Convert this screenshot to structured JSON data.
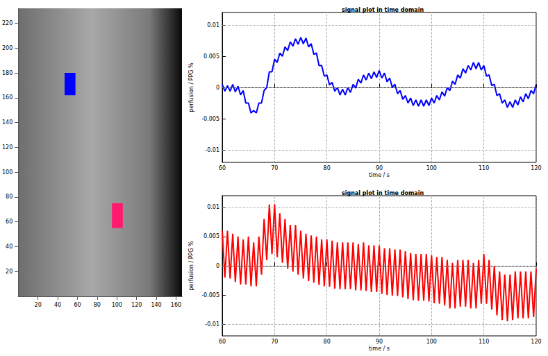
{
  "chart_data": [
    {
      "type": "image",
      "xlim": [
        0,
        166
      ],
      "ylim": [
        0,
        232
      ],
      "xticks": [
        20,
        40,
        60,
        80,
        100,
        120,
        140,
        160
      ],
      "yticks": [
        20,
        40,
        60,
        80,
        100,
        120,
        140,
        160,
        180,
        200,
        220
      ],
      "grid": false,
      "regions": [
        {
          "color": "#0000ff",
          "x": [
            47,
            58
          ],
          "y": [
            162,
            180
          ]
        },
        {
          "color": "#ff1a6e",
          "x": [
            95,
            106
          ],
          "y": [
            55,
            75
          ]
        }
      ]
    },
    {
      "type": "line",
      "title": "signal plot in time domain",
      "x_label": "time / s",
      "y_label": "perfusion / PPG %",
      "xlim": [
        60,
        120
      ],
      "xticks": [
        60,
        70,
        80,
        90,
        100,
        110,
        120
      ],
      "ylim": [
        -0.012,
        0.012
      ],
      "yticks": [
        -0.01,
        -0.005,
        0,
        0.005,
        0.01
      ],
      "grid": true,
      "x": [
        60,
        60.5,
        61,
        61.5,
        62,
        62.5,
        63,
        63.5,
        64,
        64.5,
        65,
        65.5,
        66,
        66.5,
        67,
        67.5,
        68,
        68.5,
        69,
        69.5,
        70,
        70.5,
        71,
        71.5,
        72,
        72.5,
        73,
        73.5,
        74,
        74.5,
        75,
        75.5,
        76,
        76.5,
        77,
        77.5,
        78,
        78.5,
        79,
        79.5,
        80,
        80.5,
        81,
        81.5,
        82,
        82.5,
        83,
        83.5,
        84,
        84.5,
        85,
        85.5,
        86,
        86.5,
        87,
        87.5,
        88,
        88.5,
        89,
        89.5,
        90,
        90.5,
        91,
        91.5,
        92,
        92.5,
        93,
        93.5,
        94,
        94.5,
        95,
        95.5,
        96,
        96.5,
        97,
        97.5,
        98,
        98.5,
        99,
        99.5,
        100,
        100.5,
        101,
        101.5,
        102,
        102.5,
        103,
        103.5,
        104,
        104.5,
        105,
        105.5,
        106,
        106.5,
        107,
        107.5,
        108,
        108.5,
        109,
        109.5,
        110,
        110.5,
        111,
        111.5,
        112,
        112.5,
        113,
        113.5,
        114,
        114.5,
        115,
        115.5,
        116,
        116.5,
        117,
        117.5,
        118,
        118.5,
        119,
        119.5,
        120
      ],
      "series": [
        {
          "color": "#0000ff",
          "values": [
            0.0005,
            -0.0006,
            0.0003,
            -0.0006,
            0.0005,
            -0.0007,
            0.0002,
            -0.0012,
            -0.0005,
            -0.0025,
            -0.0025,
            -0.0041,
            -0.0037,
            -0.0041,
            -0.0025,
            -0.0025,
            -0.0005,
            0.0,
            0.0025,
            0.0025,
            0.0045,
            0.004,
            0.0055,
            0.005,
            0.0065,
            0.0059,
            0.0073,
            0.0066,
            0.0078,
            0.0069,
            0.008,
            0.007,
            0.0079,
            0.0065,
            0.007,
            0.0053,
            0.0055,
            0.0035,
            0.0035,
            0.0018,
            0.002,
            0.0004,
            0.0008,
            -0.0006,
            0.0,
            -0.0012,
            -0.0003,
            -0.0012,
            0.0,
            -0.0008,
            0.0005,
            -0.0001,
            0.0013,
            0.0007,
            0.002,
            0.0012,
            0.0023,
            0.0014,
            0.0025,
            0.0016,
            0.0027,
            0.0015,
            0.0023,
            0.0009,
            0.0015,
            0.0,
            0.0005,
            -0.001,
            -0.0005,
            -0.0019,
            -0.0013,
            -0.0025,
            -0.0017,
            -0.0029,
            -0.002,
            -0.003,
            -0.002,
            -0.003,
            -0.002,
            -0.0029,
            -0.0017,
            -0.0025,
            -0.0013,
            -0.002,
            -0.0007,
            -0.0014,
            0.0,
            -0.0005,
            0.001,
            0.0005,
            0.002,
            0.0015,
            0.003,
            0.0023,
            0.0035,
            0.0028,
            0.004,
            0.003,
            0.004,
            0.0028,
            0.0035,
            0.0018,
            0.002,
            0.0003,
            0.0005,
            -0.0013,
            -0.001,
            -0.0025,
            -0.002,
            -0.0032,
            -0.0023,
            -0.0032,
            -0.002,
            -0.0028,
            -0.0015,
            -0.0023,
            -0.001,
            -0.0018,
            -0.0005,
            -0.001,
            0.0005
          ]
        }
      ]
    },
    {
      "type": "line",
      "title": "signal plot in time domain",
      "x_label": "time / s",
      "y_label": "perfusion / PPG %",
      "xlim": [
        60,
        120
      ],
      "xticks": [
        60,
        70,
        80,
        90,
        100,
        110,
        120
      ],
      "ylim": [
        -0.012,
        0.012
      ],
      "yticks": [
        -0.01,
        -0.005,
        0,
        0.005,
        0.01
      ],
      "grid": true,
      "x": [
        60,
        60.5,
        61,
        61.5,
        62,
        62.5,
        63,
        63.5,
        64,
        64.5,
        65,
        65.5,
        66,
        66.5,
        67,
        67.5,
        68,
        68.5,
        69,
        69.5,
        70,
        70.5,
        71,
        71.5,
        72,
        72.5,
        73,
        73.5,
        74,
        74.5,
        75,
        75.5,
        76,
        76.5,
        77,
        77.5,
        78,
        78.5,
        79,
        79.5,
        80,
        80.5,
        81,
        81.5,
        82,
        82.5,
        83,
        83.5,
        84,
        84.5,
        85,
        85.5,
        86,
        86.5,
        87,
        87.5,
        88,
        88.5,
        89,
        89.5,
        90,
        90.5,
        91,
        91.5,
        92,
        92.5,
        93,
        93.5,
        94,
        94.5,
        95,
        95.5,
        96,
        96.5,
        97,
        97.5,
        98,
        98.5,
        99,
        99.5,
        100,
        100.5,
        101,
        101.5,
        102,
        102.5,
        103,
        103.5,
        104,
        104.5,
        105,
        105.5,
        106,
        106.5,
        107,
        107.5,
        108,
        108.5,
        109,
        109.5,
        110,
        110.5,
        111,
        111.5,
        112,
        112.5,
        113,
        113.5,
        114,
        114.5,
        115,
        115.5,
        116,
        116.5,
        117,
        117.5,
        118,
        118.5,
        119,
        119.5,
        120
      ],
      "series": [
        {
          "color": "#ff0000",
          "values": [
            0.006,
            -0.002,
            0.006,
            -0.0022,
            0.0055,
            -0.0028,
            0.005,
            -0.0032,
            0.0045,
            -0.0032,
            0.005,
            -0.0035,
            0.004,
            -0.0035,
            0.005,
            -0.0015,
            0.008,
            0.001,
            0.0105,
            0.002,
            0.0105,
            0.0015,
            0.009,
            0.0005,
            0.008,
            -0.0005,
            0.007,
            -0.001,
            0.007,
            -0.0015,
            0.006,
            -0.0022,
            0.0055,
            -0.0026,
            0.0052,
            -0.0029,
            0.005,
            -0.0033,
            0.0045,
            -0.0035,
            0.0045,
            -0.0036,
            0.0043,
            -0.0039,
            0.004,
            -0.004,
            0.004,
            -0.004,
            0.004,
            -0.004,
            0.004,
            -0.0042,
            0.0037,
            -0.0042,
            0.004,
            -0.0043,
            0.0035,
            -0.0045,
            0.0035,
            -0.0045,
            0.0035,
            -0.0048,
            0.003,
            -0.005,
            0.003,
            -0.0051,
            0.0028,
            -0.0052,
            0.0028,
            -0.0054,
            0.0025,
            -0.0057,
            0.0022,
            -0.0059,
            0.002,
            -0.006,
            0.002,
            -0.006,
            0.002,
            -0.0061,
            0.0018,
            -0.0064,
            0.0015,
            -0.0065,
            0.0015,
            -0.0068,
            0.001,
            -0.0073,
            0.0005,
            -0.0073,
            0.001,
            -0.007,
            0.001,
            -0.007,
            0.001,
            -0.0073,
            0.0005,
            -0.0073,
            0.001,
            -0.0065,
            0.002,
            -0.0065,
            0.001,
            -0.0075,
            0.0,
            -0.0085,
            -0.001,
            -0.0093,
            -0.0015,
            -0.0095,
            -0.0015,
            -0.0093,
            -0.001,
            -0.009,
            -0.001,
            -0.009,
            -0.001,
            -0.009,
            -0.001,
            -0.0088,
            -0.0005
          ]
        }
      ]
    }
  ]
}
